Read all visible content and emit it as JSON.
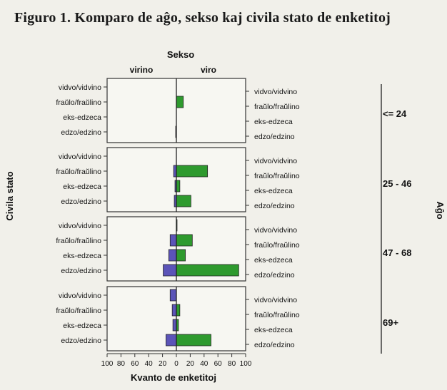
{
  "title": "Figuro 1. Komparo de aĝo, sekso kaj civila stato de enketitoj",
  "chart_data": {
    "type": "bar",
    "orientation": "horizontal",
    "layout": "population pyramid (back-to-back) in four stacked panels",
    "top_label": "Sekso",
    "left_side_label": "virino",
    "right_side_label": "viro",
    "xlabel": "Kvanto de enketitoj",
    "ylabel": "Civila stato",
    "right_axis_label": "Aĝo",
    "xlim": [
      -100,
      100
    ],
    "x_ticks": [
      "100",
      "80",
      "60",
      "40",
      "20",
      "0",
      "20",
      "40",
      "60",
      "80",
      "100"
    ],
    "categories": [
      "vidvo/vidvino",
      "fraŭlo/fraŭlino",
      "eks-edzeca",
      "edzo/edzino"
    ],
    "colors": {
      "virino": "#5b54b8",
      "viro": "#2e9a2e"
    },
    "panels": [
      {
        "age_group": "<= 24",
        "virino": [
          0,
          0,
          0,
          1
        ],
        "viro": [
          0,
          10,
          0,
          0
        ]
      },
      {
        "age_group": "25 - 46",
        "virino": [
          0,
          4,
          2,
          3
        ],
        "viro": [
          0,
          45,
          5,
          21
        ]
      },
      {
        "age_group": "47 - 68",
        "virino": [
          0,
          9,
          11,
          19
        ],
        "viro": [
          1,
          23,
          13,
          90
        ]
      },
      {
        "age_group": "69+",
        "virino": [
          9,
          6,
          5,
          15
        ],
        "viro": [
          0,
          5,
          3,
          50
        ]
      }
    ]
  }
}
